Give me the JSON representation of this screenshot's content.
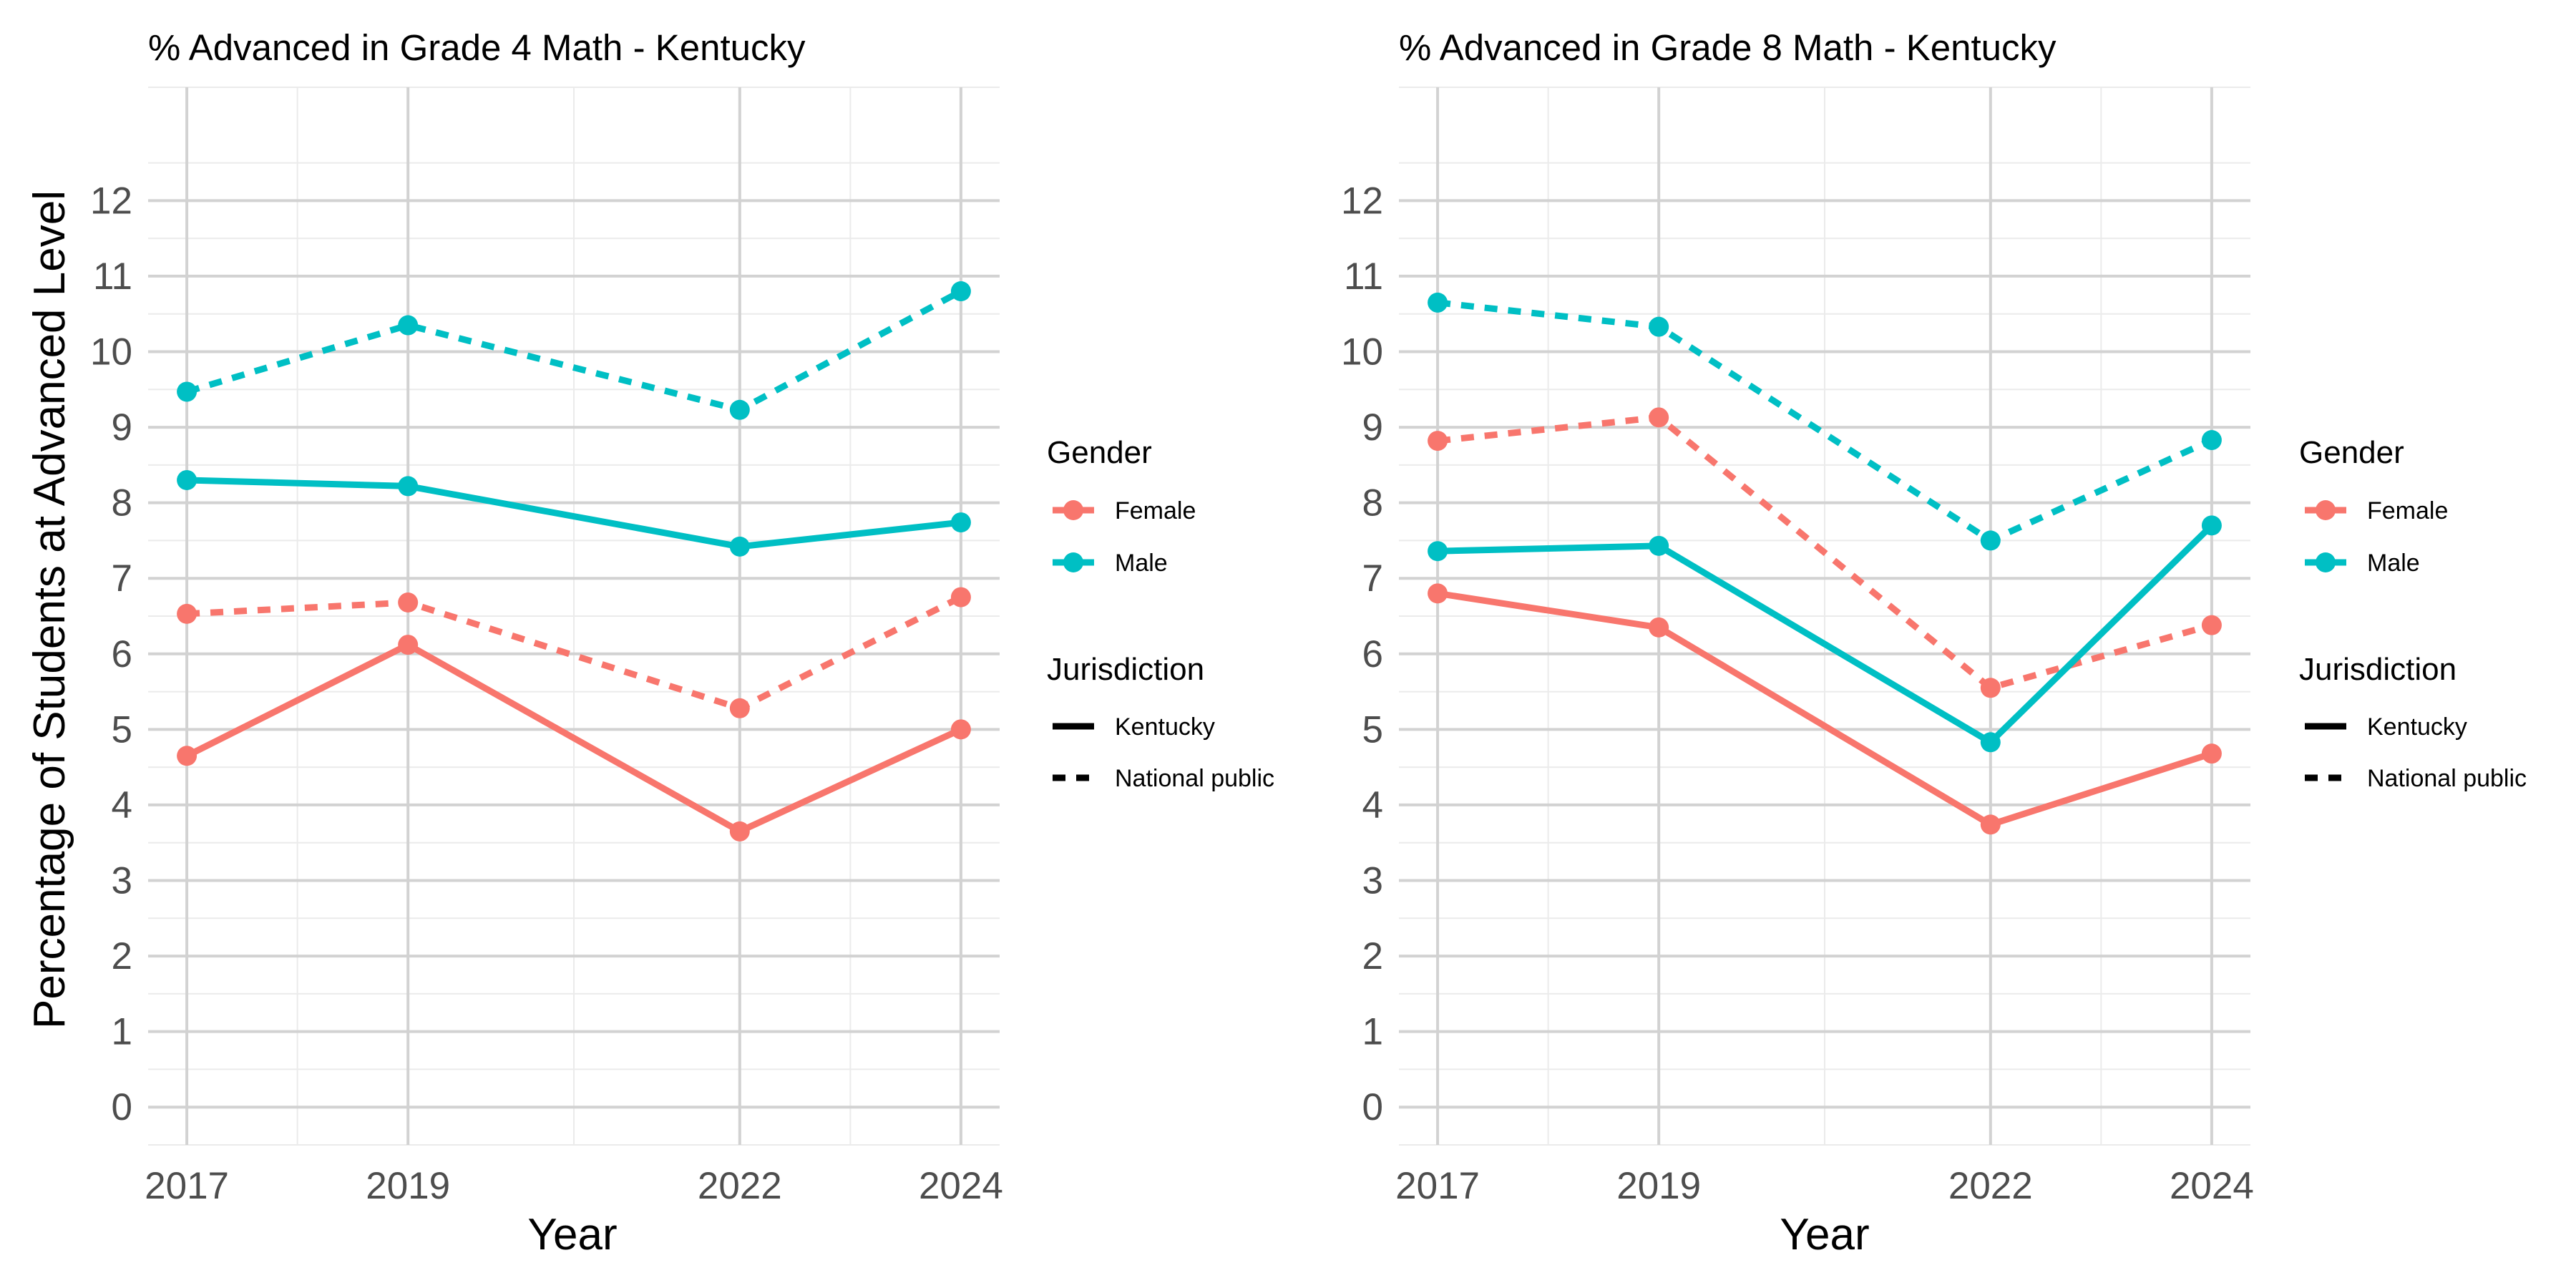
{
  "colors": {
    "Female": "#F8766D",
    "Male": "#00BFC4",
    "grid_major": "#d2d2d2",
    "grid_minor": "#ebebeb"
  },
  "y_axis_label": "Percentage of Students at Advanced Level",
  "legend": {
    "gender_title": "Gender",
    "gender_items": [
      "Female",
      "Male"
    ],
    "jurisdiction_title": "Jurisdiction",
    "jurisdiction_items": [
      "Kentucky",
      "National public"
    ]
  },
  "chart_data": [
    {
      "type": "line",
      "title": "% Advanced in Grade 4 Math - Kentucky",
      "xlabel": "Year",
      "ylabel": "Percentage of Students at Advanced Level",
      "x": [
        2017,
        2019,
        2022,
        2024
      ],
      "xticks": [
        2017,
        2019,
        2022,
        2024
      ],
      "xlim": [
        2016.65,
        2024.35
      ],
      "ylim": [
        -0.5,
        13.5
      ],
      "yticks": [
        0,
        1,
        2,
        3,
        4,
        5,
        6,
        7,
        8,
        9,
        10,
        11,
        12
      ],
      "grid": true,
      "legend_position": "right",
      "series": [
        {
          "gender": "Female",
          "jurisdiction": "Kentucky",
          "values": [
            4.65,
            6.12,
            3.65,
            5.0
          ]
        },
        {
          "gender": "Female",
          "jurisdiction": "National public",
          "values": [
            6.53,
            6.68,
            5.28,
            6.75
          ]
        },
        {
          "gender": "Male",
          "jurisdiction": "Kentucky",
          "values": [
            8.3,
            8.22,
            7.42,
            7.74
          ]
        },
        {
          "gender": "Male",
          "jurisdiction": "National public",
          "values": [
            9.47,
            10.35,
            9.23,
            10.8
          ]
        }
      ]
    },
    {
      "type": "line",
      "title": "% Advanced in Grade 8 Math - Kentucky",
      "xlabel": "Year",
      "x": [
        2017,
        2019,
        2022,
        2024
      ],
      "xticks": [
        2017,
        2019,
        2022,
        2024
      ],
      "xlim": [
        2016.65,
        2024.35
      ],
      "ylim": [
        -0.5,
        13.5
      ],
      "yticks": [
        0,
        1,
        2,
        3,
        4,
        5,
        6,
        7,
        8,
        9,
        10,
        11,
        12
      ],
      "grid": true,
      "legend_position": "right",
      "series": [
        {
          "gender": "Female",
          "jurisdiction": "Kentucky",
          "values": [
            6.8,
            6.35,
            3.74,
            4.68
          ]
        },
        {
          "gender": "Female",
          "jurisdiction": "National public",
          "values": [
            8.82,
            9.13,
            5.55,
            6.38
          ]
        },
        {
          "gender": "Male",
          "jurisdiction": "Kentucky",
          "values": [
            7.36,
            7.43,
            4.83,
            7.7
          ]
        },
        {
          "gender": "Male",
          "jurisdiction": "National public",
          "values": [
            10.65,
            10.33,
            7.5,
            8.83
          ]
        }
      ]
    }
  ]
}
